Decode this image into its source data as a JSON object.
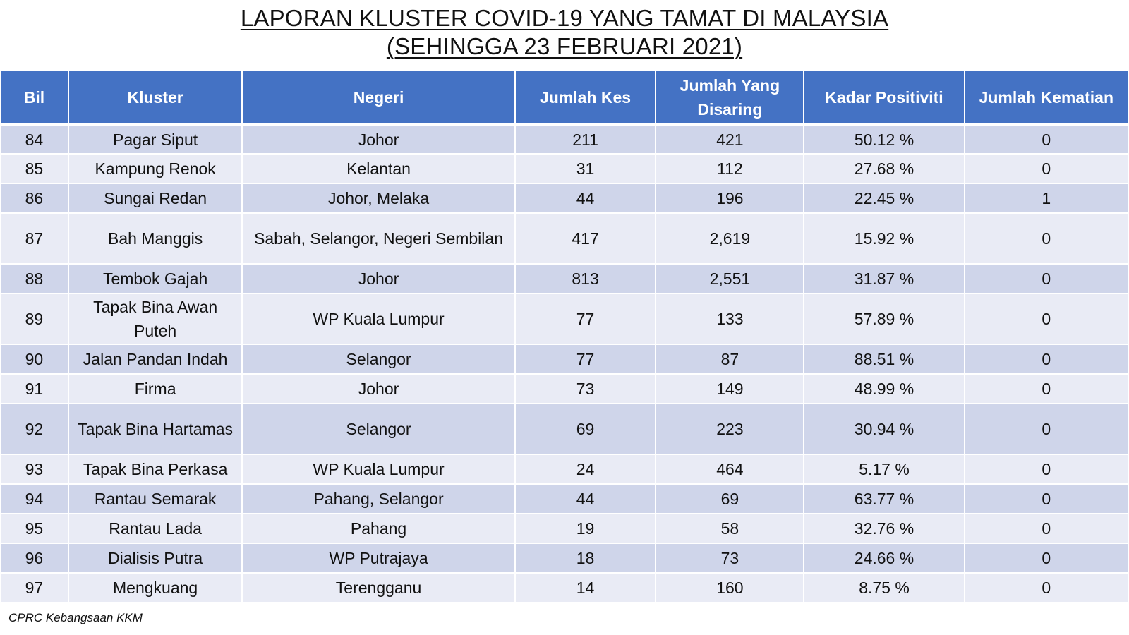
{
  "title": {
    "line1": "LAPORAN KLUSTER COVID-19 YANG TAMAT DI MALAYSIA",
    "line2": "(SEHINGGA  23 FEBRUARI 2021)"
  },
  "table": {
    "headers": {
      "bil": "Bil",
      "kluster": "Kluster",
      "negeri": "Negeri",
      "jumlah_kes": "Jumlah Kes",
      "jumlah_disaring": "Jumlah Yang Disaring",
      "kadar_positiviti": "Kadar Positiviti",
      "jumlah_kematian": "Jumlah Kematian"
    },
    "rows": [
      {
        "bil": "84",
        "kluster": "Pagar Siput",
        "negeri": "Johor",
        "kes": "211",
        "disaring": "421",
        "positiviti": "50.12 %",
        "kematian": "0"
      },
      {
        "bil": "85",
        "kluster": "Kampung Renok",
        "negeri": "Kelantan",
        "kes": "31",
        "disaring": "112",
        "positiviti": "27.68 %",
        "kematian": "0"
      },
      {
        "bil": "86",
        "kluster": "Sungai Redan",
        "negeri": "Johor, Melaka",
        "kes": "44",
        "disaring": "196",
        "positiviti": "22.45 %",
        "kematian": "1"
      },
      {
        "bil": "87",
        "kluster": "Bah Manggis",
        "negeri": "Sabah, Selangor, Negeri Sembilan",
        "kes": "417",
        "disaring": "2,619",
        "positiviti": "15.92 %",
        "kematian": "0"
      },
      {
        "bil": "88",
        "kluster": "Tembok Gajah",
        "negeri": "Johor",
        "kes": "813",
        "disaring": "2,551",
        "positiviti": "31.87 %",
        "kematian": "0"
      },
      {
        "bil": "89",
        "kluster": "Tapak Bina Awan Puteh",
        "negeri": "WP Kuala Lumpur",
        "kes": "77",
        "disaring": "133",
        "positiviti": "57.89 %",
        "kematian": "0"
      },
      {
        "bil": "90",
        "kluster": "Jalan Pandan Indah",
        "negeri": "Selangor",
        "kes": "77",
        "disaring": "87",
        "positiviti": "88.51 %",
        "kematian": "0"
      },
      {
        "bil": "91",
        "kluster": "Firma",
        "negeri": "Johor",
        "kes": "73",
        "disaring": "149",
        "positiviti": "48.99 %",
        "kematian": "0"
      },
      {
        "bil": "92",
        "kluster": "Tapak Bina Hartamas",
        "negeri": "Selangor",
        "kes": "69",
        "disaring": "223",
        "positiviti": "30.94 %",
        "kematian": "0"
      },
      {
        "bil": "93",
        "kluster": "Tapak Bina Perkasa",
        "negeri": "WP Kuala Lumpur",
        "kes": "24",
        "disaring": "464",
        "positiviti": "5.17 %",
        "kematian": "0"
      },
      {
        "bil": "94",
        "kluster": "Rantau Semarak",
        "negeri": "Pahang, Selangor",
        "kes": "44",
        "disaring": "69",
        "positiviti": "63.77 %",
        "kematian": "0"
      },
      {
        "bil": "95",
        "kluster": "Rantau Lada",
        "negeri": "Pahang",
        "kes": "19",
        "disaring": "58",
        "positiviti": "32.76 %",
        "kematian": "0"
      },
      {
        "bil": "96",
        "kluster": "Dialisis Putra",
        "negeri": "WP Putrajaya",
        "kes": "18",
        "disaring": "73",
        "positiviti": "24.66 %",
        "kematian": "0"
      },
      {
        "bil": "97",
        "kluster": "Mengkuang",
        "negeri": "Terengganu",
        "kes": "14",
        "disaring": "160",
        "positiviti": "8.75 %",
        "kematian": "0"
      }
    ]
  },
  "footer": {
    "source": "CPRC Kebangsaan KKM"
  },
  "colors": {
    "header_bg": "#4472c4",
    "row_odd_bg": "#cfd5ea",
    "row_even_bg": "#e9ebf5"
  }
}
